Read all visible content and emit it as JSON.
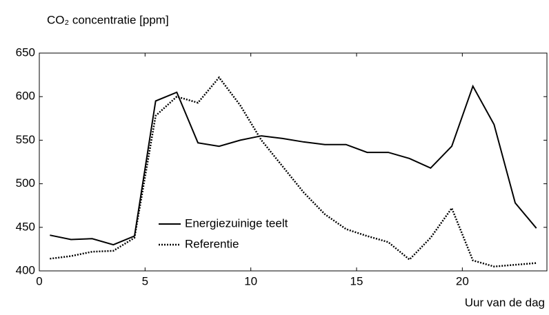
{
  "chart_data": {
    "type": "line",
    "title": "CO₂ concentratie [ppm]",
    "x_label": "Uur van de dag",
    "x": [
      0.5,
      1.5,
      2.5,
      3.5,
      4.5,
      5.5,
      6.5,
      7.5,
      8.5,
      9.5,
      10.5,
      11.5,
      12.5,
      13.5,
      14.5,
      15.5,
      16.5,
      17.5,
      18.5,
      19.5,
      20.5,
      21.5,
      22.5,
      23.5
    ],
    "series": [
      {
        "name": "Energiezuinige teelt",
        "color": "#000000",
        "dash": "solid",
        "values": [
          441,
          436,
          437,
          430,
          440,
          595,
          605,
          547,
          543,
          550,
          555,
          552,
          548,
          545,
          545,
          536,
          536,
          529,
          518,
          543,
          612,
          568,
          478,
          449
        ]
      },
      {
        "name": "Referentie",
        "color": "#000000",
        "dash": "dotted",
        "values": [
          414,
          417,
          422,
          423,
          438,
          578,
          600,
          593,
          622,
          590,
          550,
          520,
          490,
          465,
          448,
          440,
          433,
          413,
          438,
          472,
          412,
          405,
          407,
          409
        ]
      }
    ],
    "xlim": [
      0,
      24
    ],
    "xticks": [
      0,
      5,
      10,
      15,
      20
    ],
    "ylim": [
      400,
      650
    ],
    "yticks": [
      400,
      450,
      500,
      550,
      600,
      650
    ],
    "grid": false,
    "legend": "lower left"
  }
}
